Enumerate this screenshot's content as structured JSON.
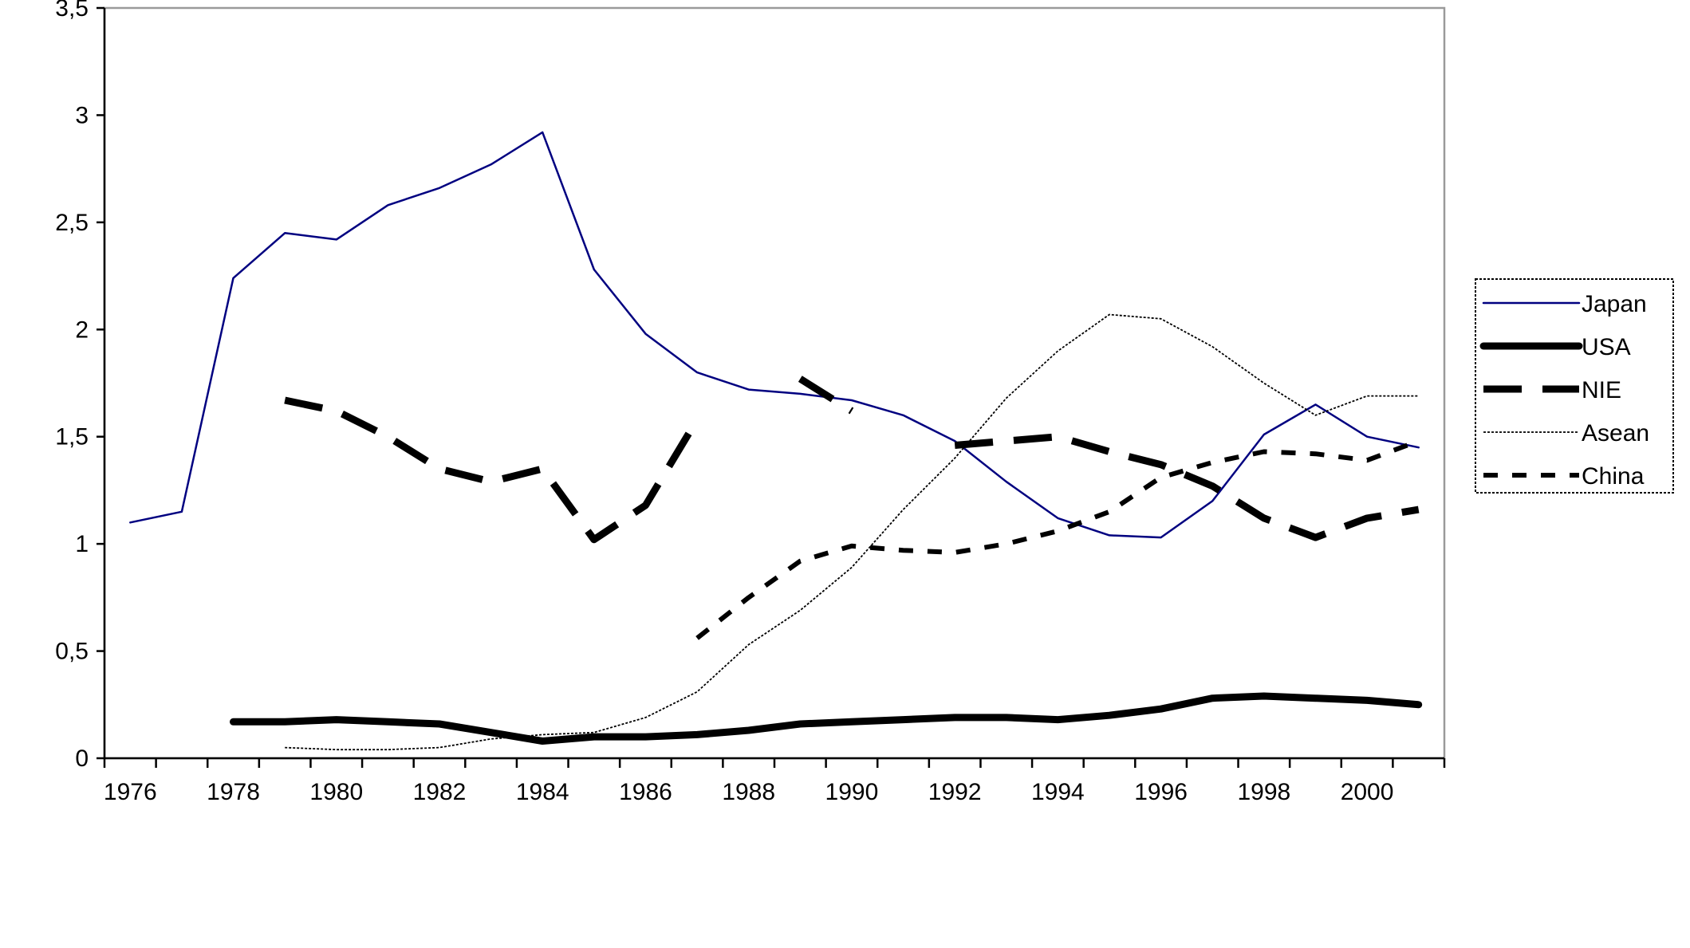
{
  "chart_data": {
    "type": "line",
    "title": "",
    "xlabel": "",
    "ylabel": "",
    "ylim": [
      0,
      3.5
    ],
    "xlim": [
      1975.5,
      2001.5
    ],
    "y_ticks": [
      {
        "value": 0,
        "label": "0"
      },
      {
        "value": 0.5,
        "label": "0,5"
      },
      {
        "value": 1,
        "label": "1"
      },
      {
        "value": 1.5,
        "label": "1,5"
      },
      {
        "value": 2,
        "label": "2"
      },
      {
        "value": 2.5,
        "label": "2,5"
      },
      {
        "value": 3,
        "label": "3"
      },
      {
        "value": 3.5,
        "label": "3,5"
      }
    ],
    "x_ticks": [
      {
        "value": 1976,
        "label": "1976"
      },
      {
        "value": 1978,
        "label": "1978"
      },
      {
        "value": 1980,
        "label": "1980"
      },
      {
        "value": 1982,
        "label": "1982"
      },
      {
        "value": 1984,
        "label": "1984"
      },
      {
        "value": 1986,
        "label": "1986"
      },
      {
        "value": 1988,
        "label": "1988"
      },
      {
        "value": 1990,
        "label": "1990"
      },
      {
        "value": 1992,
        "label": "1992"
      },
      {
        "value": 1994,
        "label": "1994"
      },
      {
        "value": 1996,
        "label": "1996"
      },
      {
        "value": 1998,
        "label": "1998"
      },
      {
        "value": 2000,
        "label": "2000"
      }
    ],
    "grid": false,
    "legend_position": "right",
    "series": [
      {
        "name": "Japan",
        "color": "#000080",
        "style": "thin-solid",
        "points": [
          [
            1976,
            1.1
          ],
          [
            1977,
            1.15
          ],
          [
            1978,
            2.24
          ],
          [
            1979,
            2.45
          ],
          [
            1980,
            2.42
          ],
          [
            1981,
            2.58
          ],
          [
            1982,
            2.66
          ],
          [
            1983,
            2.77
          ],
          [
            1984,
            2.92
          ],
          [
            1985,
            2.28
          ],
          [
            1986,
            1.98
          ],
          [
            1987,
            1.8
          ],
          [
            1988,
            1.72
          ],
          [
            1989,
            1.7
          ],
          [
            1990,
            1.67
          ],
          [
            1991,
            1.6
          ],
          [
            1992,
            1.48
          ],
          [
            1993,
            1.29
          ],
          [
            1994,
            1.12
          ],
          [
            1995,
            1.04
          ],
          [
            1996,
            1.03
          ],
          [
            1997,
            1.2
          ],
          [
            1998,
            1.51
          ],
          [
            1999,
            1.65
          ],
          [
            2000,
            1.5
          ],
          [
            2001,
            1.45
          ]
        ]
      },
      {
        "name": "USA",
        "color": "#000000",
        "style": "thick-solid",
        "points": [
          [
            1978,
            0.17
          ],
          [
            1979,
            0.17
          ],
          [
            1980,
            0.18
          ],
          [
            1981,
            0.17
          ],
          [
            1982,
            0.16
          ],
          [
            1983,
            0.12
          ],
          [
            1984,
            0.08
          ],
          [
            1985,
            0.1
          ],
          [
            1986,
            0.1
          ],
          [
            1987,
            0.11
          ],
          [
            1988,
            0.13
          ],
          [
            1989,
            0.16
          ],
          [
            1990,
            0.17
          ],
          [
            1991,
            0.18
          ],
          [
            1992,
            0.19
          ],
          [
            1993,
            0.19
          ],
          [
            1994,
            0.18
          ],
          [
            1995,
            0.2
          ],
          [
            1996,
            0.23
          ],
          [
            1997,
            0.28
          ],
          [
            1998,
            0.29
          ],
          [
            1999,
            0.28
          ],
          [
            2000,
            0.27
          ],
          [
            2001,
            0.25
          ]
        ]
      },
      {
        "name": "NIE",
        "color": "#000000",
        "style": "thick-dashed",
        "segments": [
          [
            [
              1979,
              1.67
            ],
            [
              1980,
              1.62
            ],
            [
              1981,
              1.5
            ],
            [
              1982,
              1.35
            ],
            [
              1983,
              1.29
            ],
            [
              1984,
              1.35
            ],
            [
              1985,
              1.02
            ],
            [
              1986,
              1.18
            ],
            [
              1987,
              1.58
            ]
          ],
          [
            [
              1989,
              1.77
            ],
            [
              1990,
              1.62
            ]
          ],
          [
            [
              1992,
              1.46
            ],
            [
              1993,
              1.48
            ],
            [
              1994,
              1.5
            ],
            [
              1995,
              1.43
            ],
            [
              1996,
              1.37
            ],
            [
              1997,
              1.27
            ],
            [
              1998,
              1.12
            ],
            [
              1999,
              1.03
            ],
            [
              2000,
              1.12
            ],
            [
              2001,
              1.16
            ]
          ]
        ]
      },
      {
        "name": "Asean",
        "color": "#000000",
        "style": "thin-dotted",
        "points": [
          [
            1979,
            0.05
          ],
          [
            1980,
            0.04
          ],
          [
            1981,
            0.04
          ],
          [
            1982,
            0.05
          ],
          [
            1983,
            0.09
          ],
          [
            1984,
            0.11
          ],
          [
            1985,
            0.12
          ],
          [
            1986,
            0.19
          ],
          [
            1987,
            0.31
          ],
          [
            1988,
            0.53
          ],
          [
            1989,
            0.69
          ],
          [
            1990,
            0.89
          ],
          [
            1991,
            1.16
          ],
          [
            1992,
            1.4
          ],
          [
            1993,
            1.68
          ],
          [
            1994,
            1.9
          ],
          [
            1995,
            2.07
          ],
          [
            1996,
            2.05
          ],
          [
            1997,
            1.92
          ],
          [
            1998,
            1.75
          ],
          [
            1999,
            1.6
          ],
          [
            2000,
            1.69
          ],
          [
            2001,
            1.69
          ]
        ]
      },
      {
        "name": "China",
        "color": "#000000",
        "style": "medium-dashed",
        "points": [
          [
            1987,
            0.56
          ],
          [
            1988,
            0.75
          ],
          [
            1989,
            0.92
          ],
          [
            1990,
            0.99
          ],
          [
            1991,
            0.97
          ],
          [
            1992,
            0.96
          ],
          [
            1993,
            1.0
          ],
          [
            1994,
            1.06
          ],
          [
            1995,
            1.15
          ],
          [
            1996,
            1.31
          ],
          [
            1997,
            1.38
          ],
          [
            1998,
            1.43
          ],
          [
            1999,
            1.42
          ],
          [
            2000,
            1.39
          ],
          [
            2001,
            1.48
          ]
        ]
      }
    ]
  }
}
